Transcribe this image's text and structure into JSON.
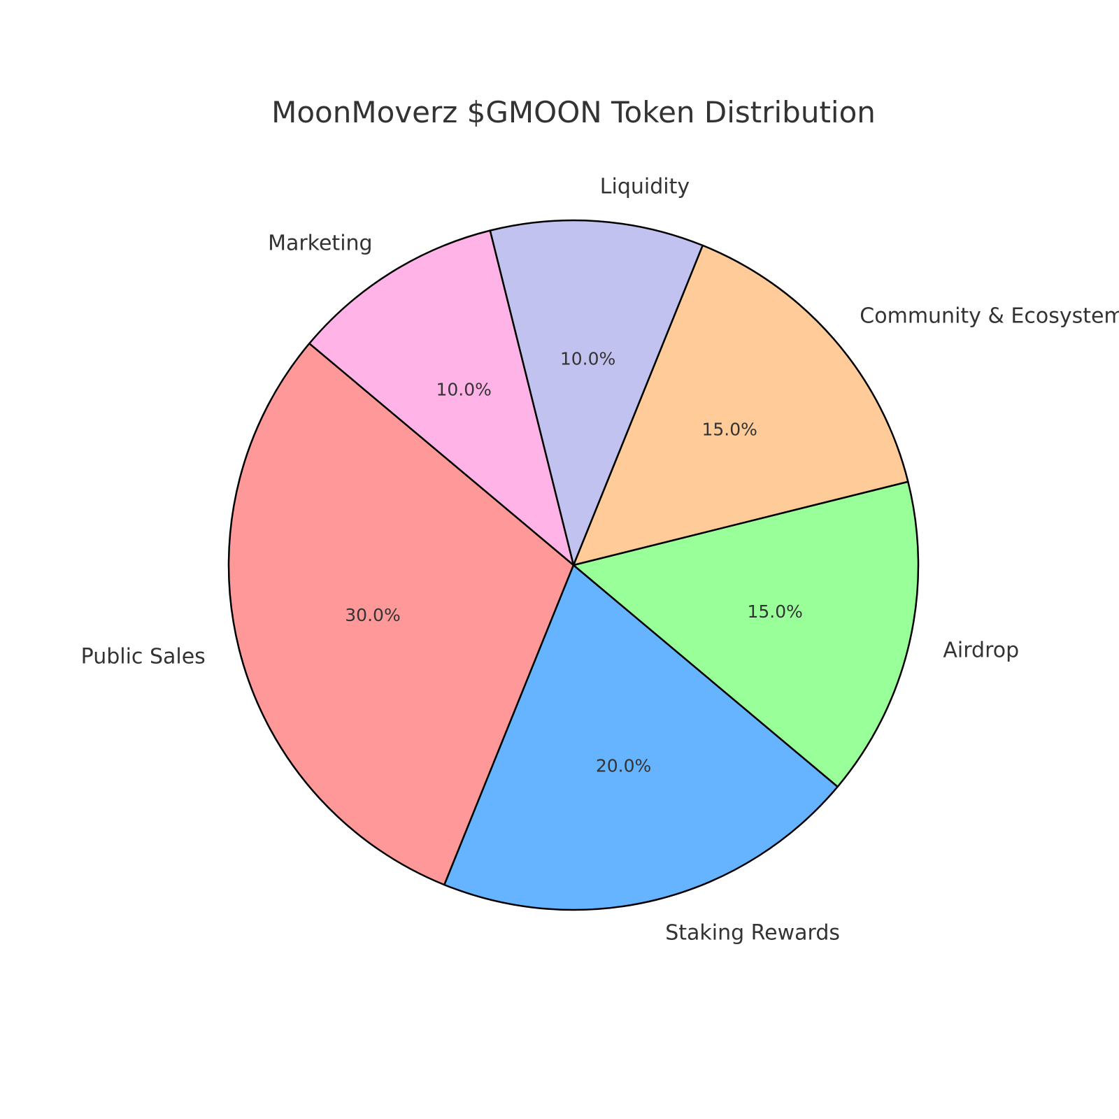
{
  "chart_data": {
    "type": "pie",
    "title": "MoonMoverz $GMOON Token Distribution",
    "categories": [
      "Public Sales",
      "Staking Rewards",
      "Airdrop",
      "Community & Ecosystem",
      "Liquidity",
      "Marketing"
    ],
    "values": [
      30.0,
      20.0,
      15.0,
      15.0,
      10.0,
      10.0
    ],
    "percent_labels": [
      "30.0%",
      "20.0%",
      "15.0%",
      "15.0%",
      "10.0%",
      "10.0%"
    ],
    "colors": [
      "#ff9999",
      "#66b3ff",
      "#99ff99",
      "#ffcc99",
      "#c2c2f0",
      "#ffb3e6"
    ],
    "start_angle_deg": 140,
    "direction": "counterclockwise",
    "legend": "none"
  }
}
